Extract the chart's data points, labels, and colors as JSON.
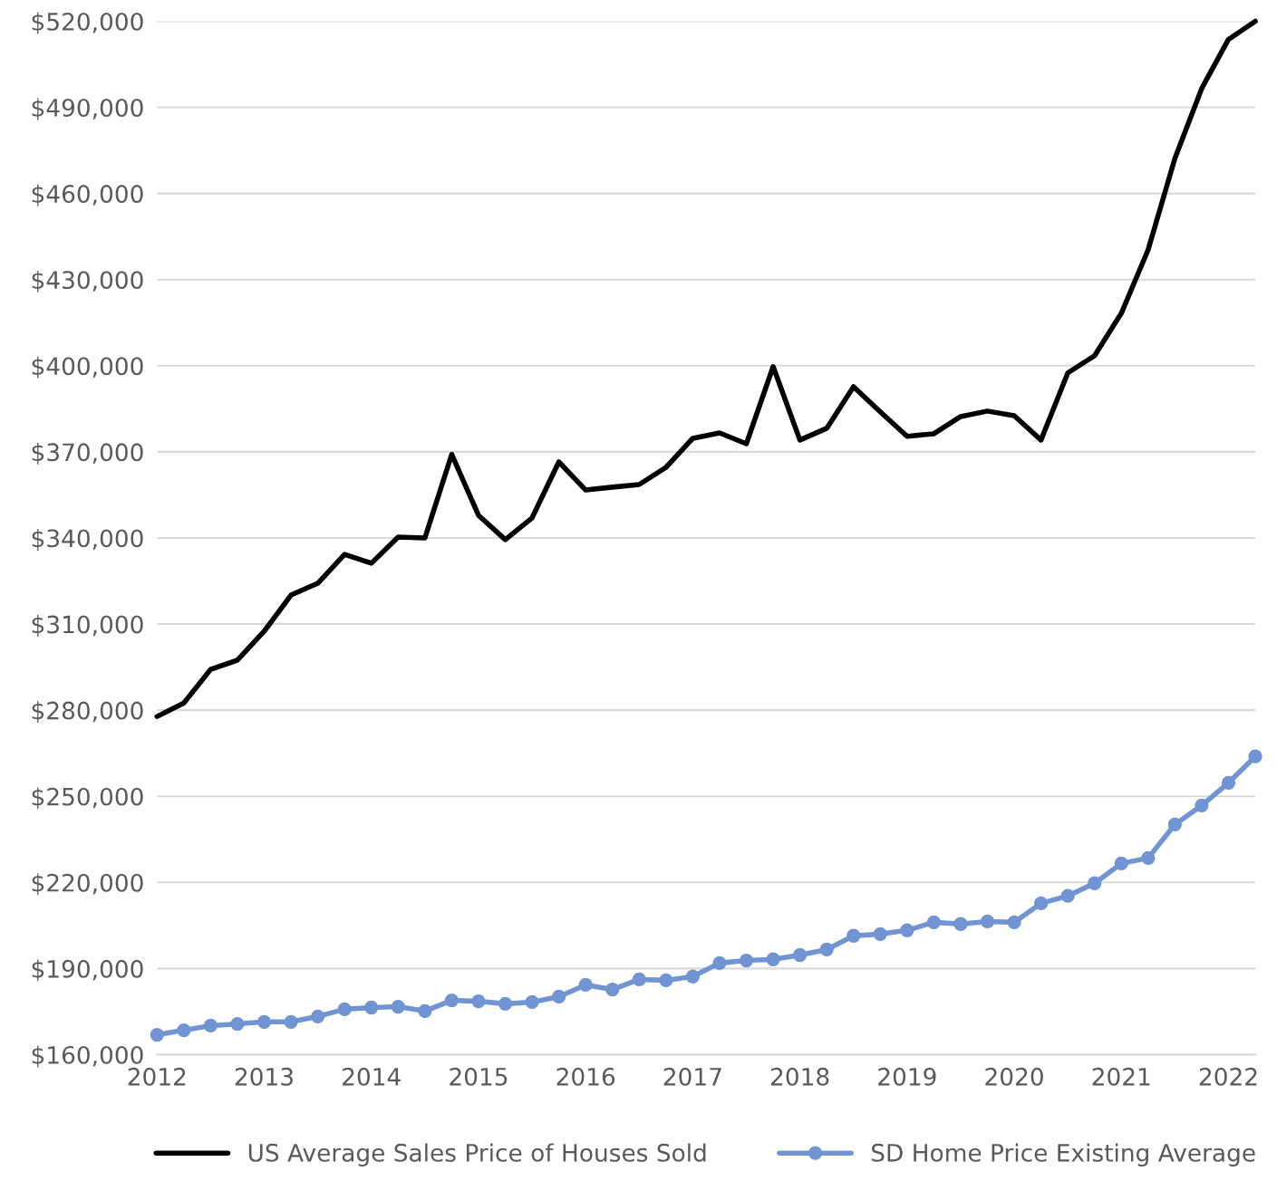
{
  "chart_data": {
    "type": "line",
    "x": [
      2012,
      2012.25,
      2012.5,
      2012.75,
      2013,
      2013.25,
      2013.5,
      2013.75,
      2014,
      2014.25,
      2014.5,
      2014.75,
      2015,
      2015.25,
      2015.5,
      2015.75,
      2016,
      2016.25,
      2016.5,
      2016.75,
      2017,
      2017.25,
      2017.5,
      2017.75,
      2018,
      2018.25,
      2018.5,
      2018.75,
      2019,
      2019.25,
      2019.5,
      2019.75,
      2020,
      2020.25,
      2020.5,
      2020.75,
      2021,
      2021.25,
      2021.5,
      2021.75,
      2022,
      2022.25
    ],
    "series": [
      {
        "name": "US Average Sales Price of Houses Sold",
        "color": "#000000",
        "marker": "none",
        "values": [
          277800,
          282500,
          294200,
          297400,
          307500,
          320100,
          324200,
          334300,
          331200,
          340300,
          340000,
          369100,
          347900,
          339400,
          347000,
          366500,
          356700,
          357700,
          358600,
          364600,
          374700,
          376600,
          372800,
          399700,
          374100,
          378200,
          392700,
          383900,
          375400,
          376300,
          382300,
          384200,
          382600,
          374100,
          397500,
          403500,
          418300,
          440400,
          472300,
          496600,
          513700,
          520000
        ]
      },
      {
        "name": "SD Home Price Existing Average",
        "color": "#7094d4",
        "marker": "circle",
        "values": [
          166900,
          168500,
          170100,
          170700,
          171400,
          171400,
          173300,
          175800,
          176400,
          176700,
          175200,
          178900,
          178600,
          177700,
          178300,
          180200,
          184300,
          182700,
          186200,
          185900,
          187200,
          191900,
          192800,
          193200,
          194700,
          196600,
          201400,
          202000,
          203300,
          206100,
          205500,
          206400,
          206100,
          212700,
          215300,
          219700,
          226600,
          228500,
          240200,
          246800,
          254700,
          263900
        ]
      }
    ],
    "xlim": [
      2012,
      2022.25
    ],
    "xticks": [
      2012,
      2013,
      2014,
      2015,
      2016,
      2017,
      2018,
      2019,
      2020,
      2021,
      2022
    ],
    "ylim": [
      160000,
      520000
    ],
    "yticks": [
      {
        "value": 160000,
        "label": "$160,000"
      },
      {
        "value": 190000,
        "label": "$190,000"
      },
      {
        "value": 220000,
        "label": "$220,000"
      },
      {
        "value": 250000,
        "label": "$250,000"
      },
      {
        "value": 280000,
        "label": "$280,000"
      },
      {
        "value": 310000,
        "label": "$310,000"
      },
      {
        "value": 340000,
        "label": "$340,000"
      },
      {
        "value": 370000,
        "label": "$370,000"
      },
      {
        "value": 400000,
        "label": "$400,000"
      },
      {
        "value": 430000,
        "label": "$430,000"
      },
      {
        "value": 460000,
        "label": "$460,000"
      },
      {
        "value": 490000,
        "label": "$490,000"
      },
      {
        "value": 520000,
        "label": "$520,000"
      }
    ],
    "grid": "y",
    "legend": "bottom",
    "line_style": "solid"
  }
}
